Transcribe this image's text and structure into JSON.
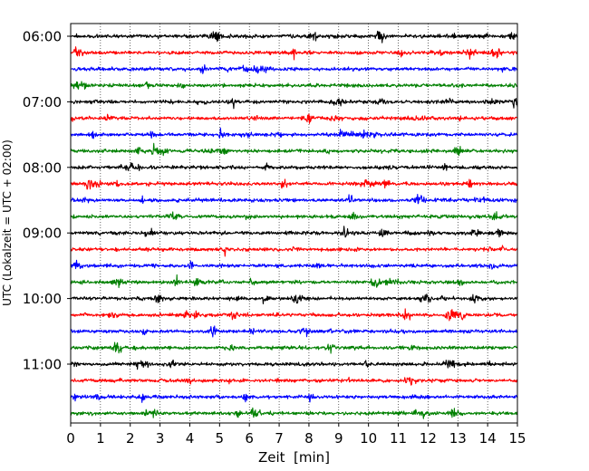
{
  "chart_data": {
    "type": "line",
    "title": "",
    "xlabel": "Zeit  [min]",
    "ylabel": "UTC (Lokalzeit = UTC + 02:00)",
    "xlim": [
      0,
      15
    ],
    "x_ticks": [
      0,
      1,
      2,
      3,
      4,
      5,
      6,
      7,
      8,
      9,
      10,
      11,
      12,
      13,
      14,
      15
    ],
    "x_grid": "dotted vertical lines at each minute",
    "y_ticks": [
      "06:00",
      "07:00",
      "08:00",
      "09:00",
      "10:00",
      "11:00"
    ],
    "trace_interval_min": 15,
    "trace_start": "06:00",
    "trace_count": 24,
    "trace_color_cycle": [
      "#000000",
      "#ff0000",
      "#0000ff",
      "#008000"
    ],
    "traces": [
      {
        "start": "06:00",
        "color": "#000000"
      },
      {
        "start": "06:15",
        "color": "#ff0000"
      },
      {
        "start": "06:30",
        "color": "#0000ff"
      },
      {
        "start": "06:45",
        "color": "#008000"
      },
      {
        "start": "07:00",
        "color": "#000000"
      },
      {
        "start": "07:15",
        "color": "#ff0000"
      },
      {
        "start": "07:30",
        "color": "#0000ff"
      },
      {
        "start": "07:45",
        "color": "#008000"
      },
      {
        "start": "08:00",
        "color": "#000000"
      },
      {
        "start": "08:15",
        "color": "#ff0000"
      },
      {
        "start": "08:30",
        "color": "#0000ff"
      },
      {
        "start": "08:45",
        "color": "#008000"
      },
      {
        "start": "09:00",
        "color": "#000000"
      },
      {
        "start": "09:15",
        "color": "#ff0000"
      },
      {
        "start": "09:30",
        "color": "#0000ff"
      },
      {
        "start": "09:45",
        "color": "#008000"
      },
      {
        "start": "10:00",
        "color": "#000000"
      },
      {
        "start": "10:15",
        "color": "#ff0000"
      },
      {
        "start": "10:30",
        "color": "#0000ff"
      },
      {
        "start": "10:45",
        "color": "#008000"
      },
      {
        "start": "11:00",
        "color": "#000000"
      },
      {
        "start": "11:15",
        "color": "#ff0000"
      },
      {
        "start": "11:30",
        "color": "#0000ff"
      },
      {
        "start": "11:45",
        "color": "#008000"
      }
    ]
  }
}
